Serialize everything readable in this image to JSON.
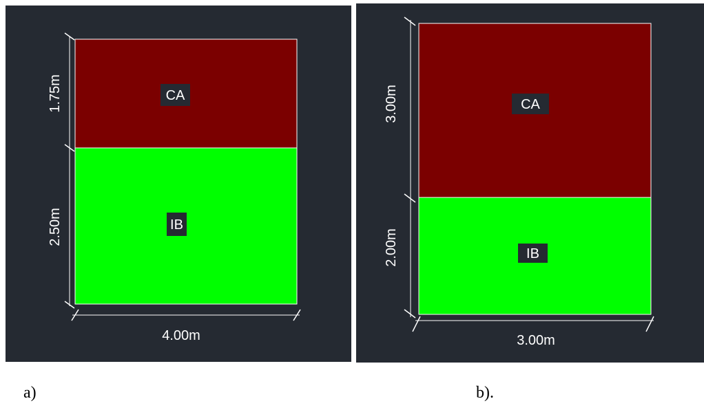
{
  "colors": {
    "background": "#252a32",
    "ca_fill": "#7b0000",
    "ib_fill": "#00ff00",
    "line": "#ffffff",
    "tag_bg": "#252a32"
  },
  "diagrams": {
    "a": {
      "caption": "a)",
      "width_label": "4.00m",
      "top_height_label": "1.75m",
      "bottom_height_label": "2.50m",
      "top_zone": "CA",
      "bottom_zone": "IB"
    },
    "b": {
      "caption": "b).",
      "width_label": "3.00m",
      "top_height_label": "3.00m",
      "bottom_height_label": "2.00m",
      "top_zone": "CA",
      "bottom_zone": "IB"
    }
  }
}
